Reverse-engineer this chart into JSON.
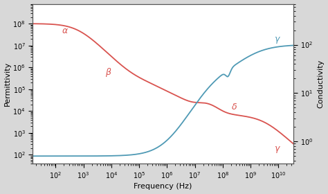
{
  "fig_width": 4.74,
  "fig_height": 2.8,
  "dpi": 100,
  "bg_color": "#d8d8d8",
  "plot_bg_color": "#ffffff",
  "freq_min": 15,
  "freq_max": 35000000000.0,
  "perm_ylim": [
    40,
    800000000.0
  ],
  "cond_ylim": [
    0.35,
    700
  ],
  "xlabel": "Frequency (Hz)",
  "ylabel_left": "Permittivity",
  "ylabel_right": "Conductivity",
  "red_color": "#d9534f",
  "blue_color": "#4f9ab5"
}
